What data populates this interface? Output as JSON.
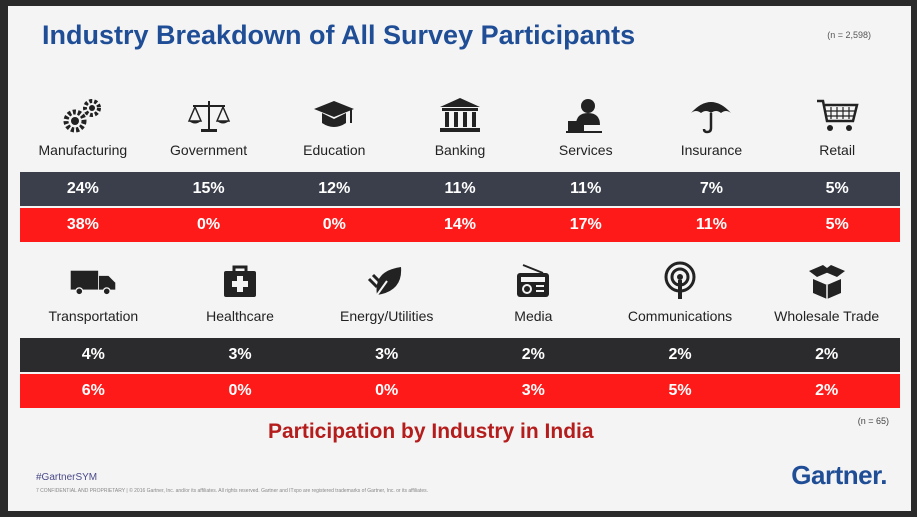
{
  "title": "Industry Breakdown of All Survey Participants",
  "n_top": "(n = 2,598)",
  "row1": {
    "categories": [
      {
        "label": "Manufacturing",
        "icon": "gears-icon",
        "global": "24%",
        "india": "38%"
      },
      {
        "label": "Government",
        "icon": "scales-icon",
        "global": "15%",
        "india": "0%"
      },
      {
        "label": "Education",
        "icon": "graduation-cap-icon",
        "global": "12%",
        "india": "0%"
      },
      {
        "label": "Banking",
        "icon": "bank-building-icon",
        "global": "11%",
        "india": "14%"
      },
      {
        "label": "Services",
        "icon": "support-agent-icon",
        "global": "11%",
        "india": "17%"
      },
      {
        "label": "Insurance",
        "icon": "umbrella-icon",
        "global": "7%",
        "india": "11%"
      },
      {
        "label": "Retail",
        "icon": "shopping-cart-icon",
        "global": "5%",
        "india": "5%"
      }
    ]
  },
  "row2": {
    "categories": [
      {
        "label": "Transportation",
        "icon": "truck-icon",
        "global": "4%",
        "india": "6%"
      },
      {
        "label": "Healthcare",
        "icon": "medical-kit-icon",
        "global": "3%",
        "india": "0%"
      },
      {
        "label": "Energy/Utilities",
        "icon": "leaf-plug-icon",
        "global": "3%",
        "india": "0%"
      },
      {
        "label": "Media",
        "icon": "radio-icon",
        "global": "2%",
        "india": "3%"
      },
      {
        "label": "Communications",
        "icon": "broadcast-icon",
        "global": "2%",
        "india": "5%"
      },
      {
        "label": "Wholesale Trade",
        "icon": "box-icon",
        "global": "2%",
        "india": "2%"
      }
    ]
  },
  "subtitle": "Participation by Industry in India",
  "n_bottom": "(n = 65)",
  "hashtag": "#GartnerSYM",
  "footer": "7   CONFIDENTIAL AND PROPRIETARY  |  © 2016 Gartner, Inc. and/or its affiliates. All rights reserved. Gartner and ITxpo are registered trademarks of Gartner, Inc. or its affiliates.",
  "logo": "Gartner",
  "colors": {
    "title": "#1f4e96",
    "global_row": "#3a3f4b",
    "india_row": "#ff1a1a",
    "subtitle": "#b51c1c"
  }
}
